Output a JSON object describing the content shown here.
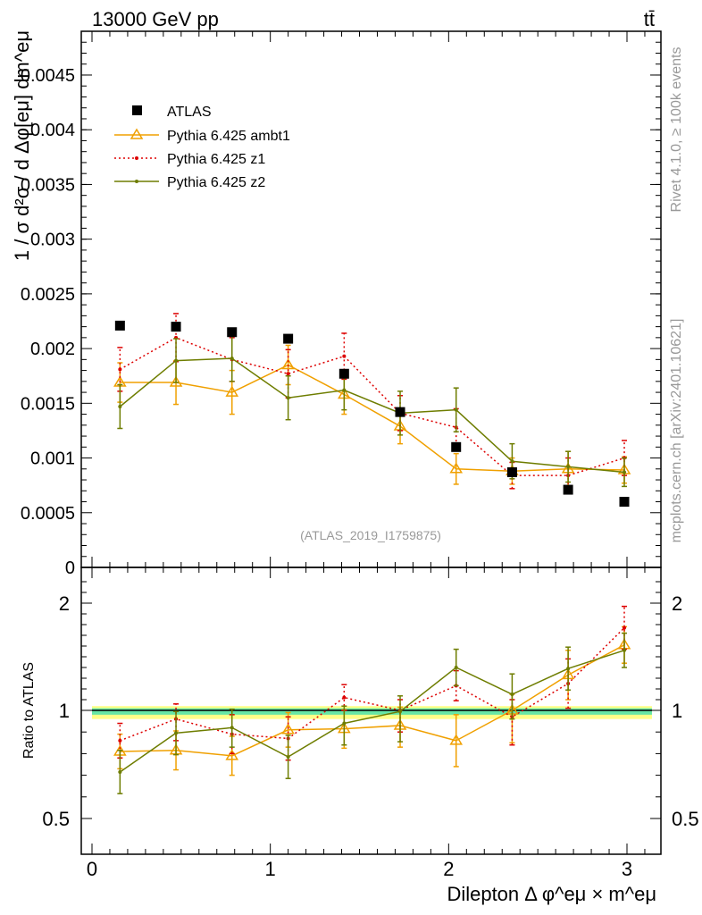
{
  "header": {
    "left_label": "13000 GeV pp",
    "right_label": "tt̄"
  },
  "side_labels": {
    "rivet": "Rivet 4.1.0, ≥ 100k events",
    "mcplots": "mcplots.cern.ch [arXiv:2401.10621]"
  },
  "watermark": "(ATLAS_2019_I1759875)",
  "colors": {
    "atlas": "#000000",
    "ambt1": "#f0a000",
    "z1": "#dd0000",
    "z2": "#6e7d00",
    "band_inner": "#66e6a6",
    "band_outer": "#ffff88"
  },
  "chart_data": [
    {
      "type": "line",
      "panel": "main",
      "ylabel": "1 / σ  d²σ / d Δφ[eμ] dm^eμ",
      "ylim": [
        0,
        0.0049
      ],
      "xlim": [
        -0.1,
        3.25
      ],
      "yticks": [
        0,
        0.0005,
        0.001,
        0.0015,
        0.002,
        0.0025,
        0.003,
        0.0035,
        0.004,
        0.0045
      ],
      "ytick_labels": [
        "0",
        "0.0005",
        "0.001",
        "0.0015",
        "0.002",
        "0.0025",
        "0.003",
        "0.0035",
        "0.004",
        "0.0045"
      ],
      "x": [
        0.157,
        0.471,
        0.785,
        1.1,
        1.414,
        1.728,
        2.042,
        2.356,
        2.67,
        2.985
      ],
      "legend_position": "top-left",
      "series": [
        {
          "name": "ATLAS",
          "marker": "square",
          "values": [
            0.00221,
            0.0022,
            0.00215,
            0.00209,
            0.00177,
            0.00142,
            0.0011,
            0.00087,
            0.00071,
            0.0006
          ],
          "errors": [
            3e-05,
            3e-05,
            3e-05,
            3e-05,
            3e-05,
            3e-05,
            2e-05,
            2e-05,
            2e-05,
            2e-05
          ]
        },
        {
          "name": "Pythia 6.425 ambt1",
          "marker": "triangle",
          "style": "solid",
          "values": [
            0.00169,
            0.00169,
            0.0016,
            0.00185,
            0.00158,
            0.00129,
            0.0009,
            0.00088,
            0.0009,
            0.00089
          ],
          "errors": [
            0.00018,
            0.0002,
            0.0002,
            0.00018,
            0.00018,
            0.00016,
            0.00014,
            0.00012,
            0.00016,
            0.00012
          ]
        },
        {
          "name": "Pythia 6.425 z1",
          "marker": "dot",
          "style": "dotted",
          "values": [
            0.00181,
            0.0021,
            0.0019,
            0.00177,
            0.00193,
            0.00141,
            0.00128,
            0.00084,
            0.00084,
            0.001
          ],
          "errors": [
            0.0002,
            0.00022,
            0.0002,
            0.00022,
            0.00021,
            0.00016,
            0.00017,
            0.00012,
            0.00016,
            0.00016
          ]
        },
        {
          "name": "Pythia 6.425 z2",
          "marker": "dot",
          "style": "solid",
          "values": [
            0.00147,
            0.00189,
            0.00191,
            0.00155,
            0.00162,
            0.00141,
            0.00144,
            0.00097,
            0.00092,
            0.00087
          ],
          "errors": [
            0.0002,
            0.0002,
            0.00021,
            0.0002,
            0.00018,
            0.0002,
            0.0002,
            0.00016,
            0.00014,
            0.00013
          ]
        }
      ]
    },
    {
      "type": "line",
      "panel": "ratio",
      "ylabel": "Ratio to ATLAS",
      "xlabel": "Dilepton Δ φ^eμ × m^eμ",
      "ylim": [
        0.35,
        2.3
      ],
      "xlim": [
        -0.1,
        3.25
      ],
      "yticks": [
        0.5,
        1,
        2
      ],
      "ytick_labels": [
        "0.5",
        "1",
        "2"
      ],
      "xticks": [
        0,
        1,
        2,
        3
      ],
      "xtick_labels": [
        "0",
        "1",
        "2",
        "3"
      ],
      "x": [
        0.157,
        0.471,
        0.785,
        1.1,
        1.414,
        1.728,
        2.042,
        2.356,
        2.67,
        2.985
      ],
      "reference_band": {
        "inner": 0.02,
        "outer": 0.04
      },
      "series": [
        {
          "name": "Pythia 6.425 ambt1",
          "values": [
            0.81,
            0.815,
            0.79,
            0.91,
            0.915,
            0.93,
            0.86,
            1.0,
            1.33,
            1.61
          ],
          "errors": [
            0.08,
            0.09,
            0.09,
            0.08,
            0.09,
            0.1,
            0.12,
            0.15,
            0.23,
            0.17
          ]
        },
        {
          "name": "Pythia 6.425 z1",
          "values": [
            0.86,
            0.96,
            0.89,
            0.87,
            1.12,
            1.0,
            1.23,
            0.97,
            1.25,
            1.77
          ],
          "errors": [
            0.08,
            0.1,
            0.09,
            0.1,
            0.12,
            0.1,
            0.14,
            0.13,
            0.23,
            0.2
          ]
        },
        {
          "name": "Pythia 6.425 z2",
          "values": [
            0.715,
            0.895,
            0.92,
            0.785,
            0.94,
            0.995,
            1.4,
            1.15,
            1.39,
            1.56
          ],
          "errors": [
            0.1,
            0.1,
            0.09,
            0.1,
            0.1,
            0.14,
            0.17,
            0.19,
            0.2,
            0.16
          ]
        }
      ]
    }
  ]
}
